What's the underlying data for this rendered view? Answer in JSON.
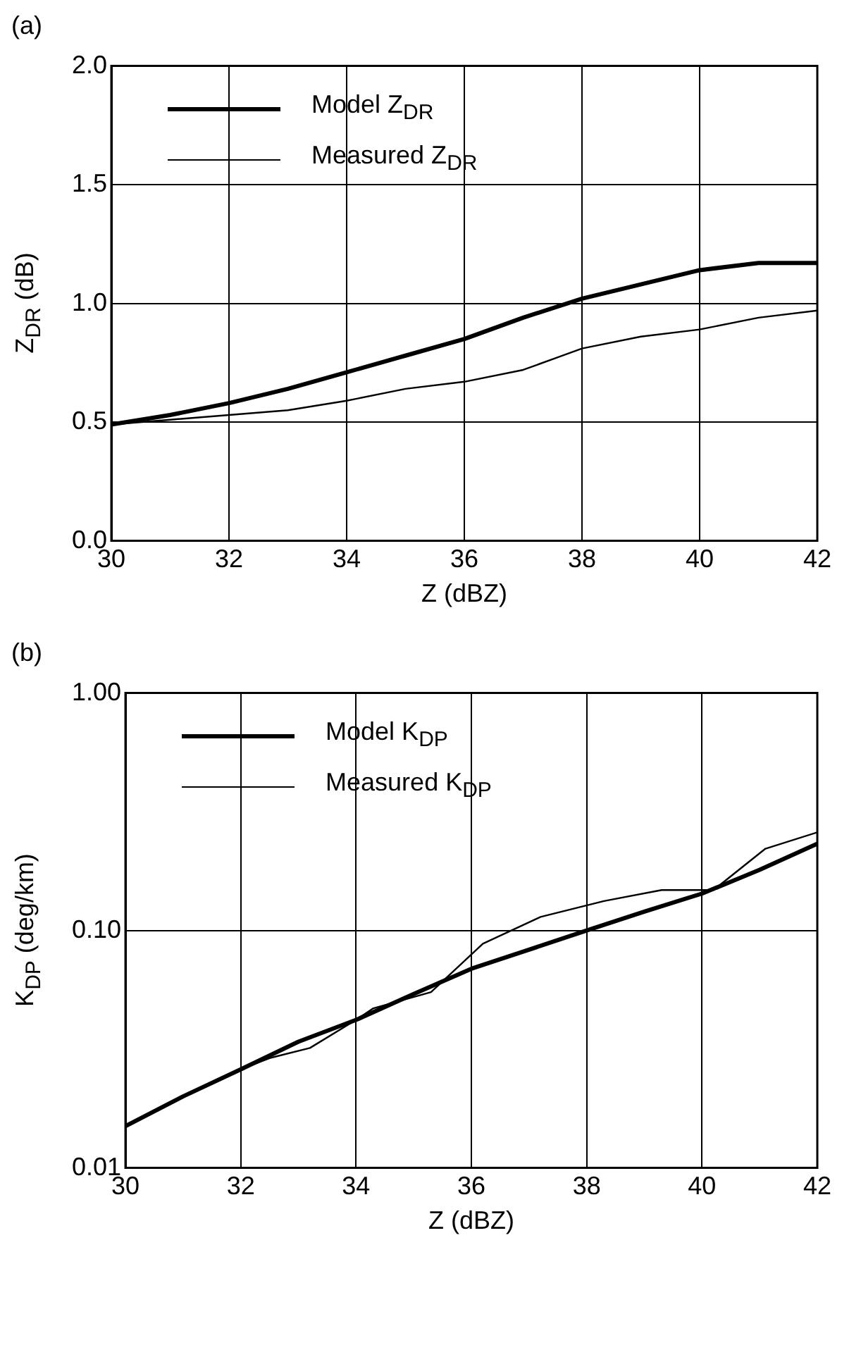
{
  "chart_data": [
    {
      "type": "line",
      "title": "(a)",
      "xlabel": "Z (dBZ)",
      "ylabel": "Z$_{DR}$ (dB)",
      "x": [
        30,
        31,
        32,
        33,
        34,
        35,
        36,
        37,
        38,
        39,
        40,
        41,
        42
      ],
      "series": [
        {
          "name": "Model Z$_{DR}$",
          "color": "#000000",
          "values": [
            0.49,
            0.53,
            0.58,
            0.64,
            0.71,
            0.78,
            0.85,
            0.94,
            1.02,
            1.08,
            1.14,
            1.17,
            1.17
          ]
        },
        {
          "name": "Measured Z$_{DR}$",
          "color": "#000000",
          "values": [
            0.49,
            0.51,
            0.53,
            0.55,
            0.59,
            0.64,
            0.67,
            0.72,
            0.81,
            0.86,
            0.89,
            0.94,
            0.97
          ]
        }
      ],
      "xlim": [
        30,
        42
      ],
      "xticks": [
        30,
        32,
        34,
        36,
        38,
        40,
        42
      ],
      "ylim": [
        0,
        2
      ],
      "yticks": [
        {
          "value": 0,
          "label": "0.0"
        },
        {
          "value": 0.5,
          "label": "0.5"
        },
        {
          "value": 1,
          "label": "1.0"
        },
        {
          "value": 1.5,
          "label": "1.5"
        },
        {
          "value": 2,
          "label": "2.0"
        }
      ],
      "grid": true,
      "legend": "top left",
      "marker": "none"
    },
    {
      "type": "line",
      "title": "(b)",
      "xlabel": "Z (dBZ)",
      "ylabel": "K$_{DP}$ (deg/km)",
      "log": "y",
      "series": [
        {
          "name": "Model K$_{DP}$",
          "color": "#000000",
          "x": [
            30,
            31,
            32,
            33,
            34,
            35,
            36,
            37,
            38,
            39,
            40,
            41,
            42
          ],
          "values": [
            0.015,
            0.02,
            0.026,
            0.034,
            0.042,
            0.054,
            0.069,
            0.083,
            0.1,
            0.12,
            0.143,
            0.18,
            0.232
          ]
        },
        {
          "name": "Measured K$_{DP}$",
          "color": "#000000",
          "x": [
            30,
            31,
            32,
            32.5,
            33.2,
            34,
            34.3,
            35.3,
            36.2,
            37.2,
            38.3,
            39.3,
            40.2,
            41.1,
            42
          ],
          "values": [
            0.015,
            0.02,
            0.026,
            0.029,
            0.032,
            0.042,
            0.047,
            0.055,
            0.088,
            0.114,
            0.133,
            0.148,
            0.148,
            0.221,
            0.259
          ]
        }
      ],
      "xlim": [
        30,
        42
      ],
      "xticks": [
        30,
        32,
        34,
        36,
        38,
        40,
        42
      ],
      "ylim": [
        0.01,
        1
      ],
      "yticks": [
        {
          "value": 0.01,
          "label": "0.01"
        },
        {
          "value": 0.1,
          "label": "0.10"
        },
        {
          "value": 1,
          "label": "1.00"
        }
      ],
      "grid": true,
      "legend": "top left",
      "marker": "none"
    }
  ]
}
